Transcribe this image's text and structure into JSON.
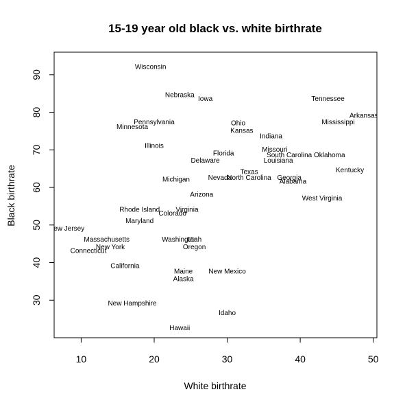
{
  "chart_data": {
    "type": "scatter",
    "title": "15-19 year old black vs. white birthrate",
    "xlabel": "White birthrate",
    "ylabel": "Black birthrate",
    "xlim": [
      6.3,
      50.5
    ],
    "ylim": [
      20,
      96
    ],
    "xticks": [
      10,
      20,
      30,
      40,
      50
    ],
    "yticks": [
      30,
      40,
      50,
      60,
      70,
      80,
      90
    ],
    "grid": false,
    "points": [
      {
        "label": "Wisconsin",
        "x": 19.5,
        "y": 92
      },
      {
        "label": "Nebraska",
        "x": 23.5,
        "y": 84.5
      },
      {
        "label": "Iowa",
        "x": 27,
        "y": 83.5
      },
      {
        "label": "Tennessee",
        "x": 43.8,
        "y": 83.5
      },
      {
        "label": "Arkansas",
        "x": 48.7,
        "y": 79
      },
      {
        "label": "Mississippi",
        "x": 45.2,
        "y": 77.3
      },
      {
        "label": "Ohio",
        "x": 31.5,
        "y": 77
      },
      {
        "label": "Pennsylvania",
        "x": 20,
        "y": 77.3
      },
      {
        "label": "Minnesota",
        "x": 17,
        "y": 76
      },
      {
        "label": "Kansas",
        "x": 32,
        "y": 75
      },
      {
        "label": "Indiana",
        "x": 36,
        "y": 73.5
      },
      {
        "label": "Illinois",
        "x": 20,
        "y": 71
      },
      {
        "label": "Missouri",
        "x": 36.5,
        "y": 70
      },
      {
        "label": "Florida",
        "x": 29.5,
        "y": 69
      },
      {
        "label": "South Carolina",
        "x": 38.5,
        "y": 68.5
      },
      {
        "label": "Oklahoma",
        "x": 44,
        "y": 68.5
      },
      {
        "label": "Delaware",
        "x": 27,
        "y": 67
      },
      {
        "label": "Louisiana",
        "x": 37,
        "y": 67
      },
      {
        "label": "Kentucky",
        "x": 46.8,
        "y": 64.5
      },
      {
        "label": "Texas",
        "x": 33,
        "y": 64
      },
      {
        "label": "Nevada",
        "x": 29,
        "y": 62.5
      },
      {
        "label": "North Carolina",
        "x": 33,
        "y": 62.5
      },
      {
        "label": "Georgia",
        "x": 38.5,
        "y": 62.5
      },
      {
        "label": "Michigan",
        "x": 23,
        "y": 62
      },
      {
        "label": "Alabama",
        "x": 39,
        "y": 61.5
      },
      {
        "label": "Arizona",
        "x": 26.5,
        "y": 58
      },
      {
        "label": "West Virginia",
        "x": 43,
        "y": 57
      },
      {
        "label": "Rhode Island",
        "x": 18,
        "y": 54
      },
      {
        "label": "Virginia",
        "x": 24.5,
        "y": 54
      },
      {
        "label": "Colorado",
        "x": 22.5,
        "y": 53
      },
      {
        "label": "Maryland",
        "x": 18,
        "y": 51
      },
      {
        "label": "New Jersey",
        "x": 8,
        "y": 49
      },
      {
        "label": "Massachusetts",
        "x": 13.5,
        "y": 46
      },
      {
        "label": "Washington",
        "x": 23.5,
        "y": 46
      },
      {
        "label": "Utah",
        "x": 25.5,
        "y": 46
      },
      {
        "label": "New York",
        "x": 14,
        "y": 44
      },
      {
        "label": "Oregon",
        "x": 25.5,
        "y": 44
      },
      {
        "label": "Connecticut",
        "x": 11,
        "y": 43
      },
      {
        "label": "California",
        "x": 16,
        "y": 39
      },
      {
        "label": "Maine",
        "x": 24,
        "y": 37.5
      },
      {
        "label": "New Mexico",
        "x": 30,
        "y": 37.5
      },
      {
        "label": "Alaska",
        "x": 24,
        "y": 35.5
      },
      {
        "label": "New Hampshire",
        "x": 17,
        "y": 29
      },
      {
        "label": "Idaho",
        "x": 30,
        "y": 26.5
      },
      {
        "label": "Hawaii",
        "x": 23.5,
        "y": 22.5
      }
    ]
  }
}
